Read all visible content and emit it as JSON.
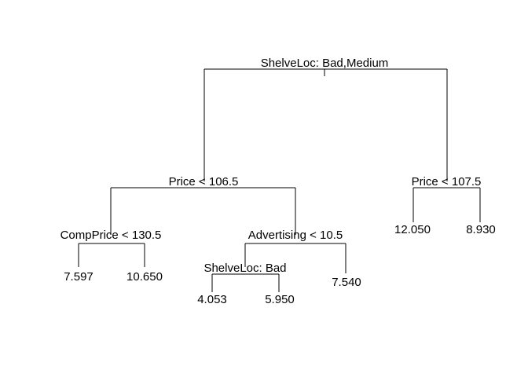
{
  "tree": {
    "split_label": "ShelveLoc: Bad,Medium",
    "left": {
      "split_label": "Price < 106.5",
      "left": {
        "split_label": "CompPrice < 130.5",
        "left": {
          "value": "7.597"
        },
        "right": {
          "value": "10.650"
        }
      },
      "right": {
        "split_label": "Advertising < 10.5",
        "left": {
          "split_label": "ShelveLoc: Bad",
          "left": {
            "value": "4.053"
          },
          "right": {
            "value": "5.950"
          }
        },
        "right": {
          "value": "7.540"
        }
      }
    },
    "right": {
      "split_label": "Price < 107.5",
      "left": {
        "value": "12.050"
      },
      "right": {
        "value": "8.930"
      }
    }
  }
}
